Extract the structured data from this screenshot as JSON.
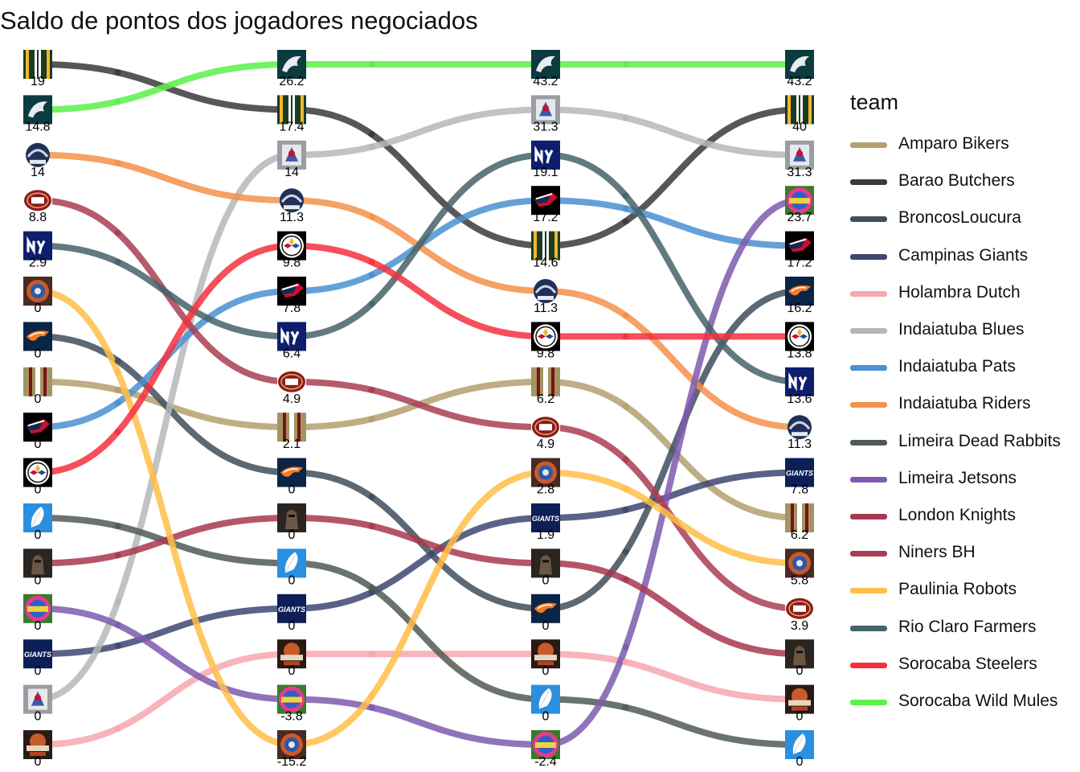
{
  "chart_data": {
    "type": "bump",
    "title": "Saldo de pontos dos jogadores negociados",
    "legend_title": "team",
    "legend_position": "right",
    "x": [
      1,
      2,
      3,
      4
    ],
    "grid": false,
    "series": [
      {
        "name": "Amparo Bikers",
        "color": "#B4A06E",
        "icon": "helmet-red-gold-stripes",
        "rank": [
          8,
          9,
          8,
          11
        ],
        "value": [
          0,
          2.1,
          6.2,
          6.2
        ]
      },
      {
        "name": "Barao Butchers",
        "color": "#3A3A3A",
        "icon": "helmet-green-yellow-stripes",
        "rank": [
          1,
          2,
          5,
          2
        ],
        "value": [
          19,
          17.4,
          14.6,
          40
        ]
      },
      {
        "name": "BroncosLoucura",
        "color": "#3F4E5B",
        "icon": "horse-logo",
        "rank": [
          7,
          10,
          13,
          6
        ],
        "value": [
          0,
          0,
          0,
          16.2
        ]
      },
      {
        "name": "Campinas Giants",
        "color": "#3E4672",
        "icon": "giants-logo",
        "rank": [
          14,
          13,
          11,
          10
        ],
        "value": [
          0,
          0,
          1.9,
          7.8
        ]
      },
      {
        "name": "Holambra Dutch",
        "color": "#F7A7AE",
        "icon": "holambra-logo",
        "rank": [
          16,
          14,
          14,
          15
        ],
        "value": [
          0,
          0,
          0,
          0
        ]
      },
      {
        "name": "Indaiatuba Blues",
        "color": "#B5B7BA",
        "icon": "blues-logo",
        "rank": [
          15,
          3,
          2,
          3
        ],
        "value": [
          0,
          14,
          31.3,
          31.3
        ]
      },
      {
        "name": "Indaiatuba Pats",
        "color": "#4A90D0",
        "icon": "patriots-logo",
        "rank": [
          9,
          6,
          4,
          5
        ],
        "value": [
          0,
          7.8,
          17.2,
          17.2
        ]
      },
      {
        "name": "Indaiatuba Riders",
        "color": "#F5914A",
        "icon": "riders-logo",
        "rank": [
          3,
          4,
          6,
          9
        ],
        "value": [
          14,
          11.3,
          11.3,
          11.3
        ]
      },
      {
        "name": "Limeira Dead Rabbits",
        "color": "#505A55",
        "icon": "feather-logo",
        "rank": [
          11,
          12,
          15,
          16
        ],
        "value": [
          0,
          0,
          0,
          0
        ]
      },
      {
        "name": "Limeira Jetsons",
        "color": "#7E5AAE",
        "icon": "jetsons-logo",
        "rank": [
          13,
          15,
          16,
          4
        ],
        "value": [
          0,
          -3.8,
          -2.4,
          23.7
        ]
      },
      {
        "name": "London Knights",
        "color": "#A8374F",
        "icon": "knight-logo",
        "rank": [
          12,
          11,
          12,
          14
        ],
        "value": [
          0,
          0,
          0,
          0
        ]
      },
      {
        "name": "Niners BH",
        "color": "#A83E52",
        "icon": "bh-logo",
        "rank": [
          4,
          8,
          9,
          13
        ],
        "value": [
          8.8,
          4.9,
          4.9,
          3.9
        ]
      },
      {
        "name": "Paulinia Robots",
        "color": "#FFBE48",
        "icon": "robot-logo",
        "rank": [
          6,
          16,
          10,
          12
        ],
        "value": [
          0,
          -15.2,
          2.8,
          5.8
        ]
      },
      {
        "name": "Rio Claro Farmers",
        "color": "#44636A",
        "icon": "ny-logo",
        "rank": [
          5,
          7,
          3,
          8
        ],
        "value": [
          2.9,
          6.4,
          19.1,
          13.6
        ]
      },
      {
        "name": "Sorocaba Steelers",
        "color": "#F5303E",
        "icon": "steelers-logo",
        "rank": [
          10,
          5,
          7,
          7
        ],
        "value": [
          0,
          9.8,
          9.8,
          13.8
        ]
      },
      {
        "name": "Sorocaba Wild Mules",
        "color": "#5CF04A",
        "icon": "eagle-logo",
        "rank": [
          2,
          1,
          1,
          1
        ],
        "value": [
          14.8,
          26.2,
          43.2,
          43.2
        ]
      }
    ]
  }
}
